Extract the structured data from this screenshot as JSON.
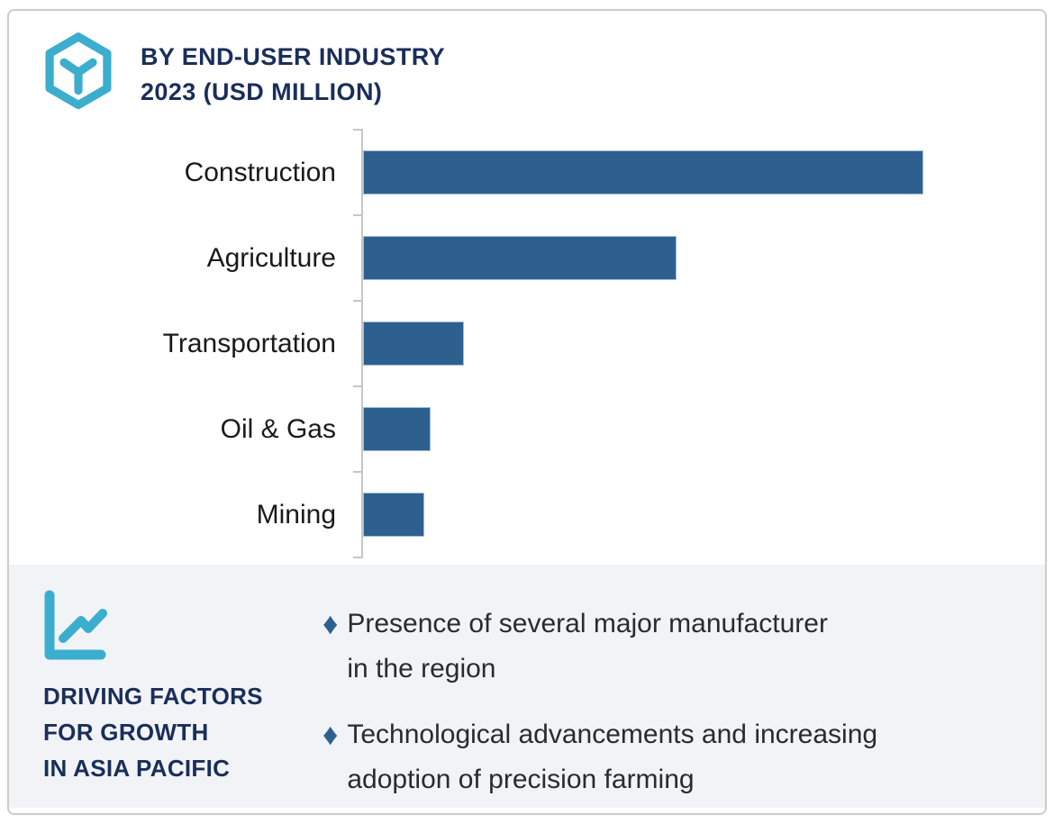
{
  "header": {
    "title_line1": "BY END-USER INDUSTRY",
    "title_line2": "2023 (USD MILLION)"
  },
  "chart_data": {
    "type": "bar",
    "orientation": "horizontal",
    "title": "BY END-USER INDUSTRY 2023 (USD MILLION)",
    "categories": [
      "Construction",
      "Agriculture",
      "Transportation",
      "Oil & Gas",
      "Mining"
    ],
    "values": [
      100,
      56,
      18,
      12,
      11
    ],
    "value_units": "relative bar length, % of longest bar (chart shows no numeric labels)",
    "xlabel": "",
    "ylabel": "",
    "xlim": [
      0,
      100
    ],
    "gridlines": false,
    "value_labels_shown": false,
    "legend": "none",
    "bar_color": "#2E608F",
    "axis_color": "#C4C6C9"
  },
  "factors": {
    "heading_lines": [
      "DRIVING FACTORS",
      "FOR GROWTH",
      "IN ASIA PACIFIC"
    ],
    "bullet_glyph": "♦",
    "bullets": [
      {
        "lines": [
          "Presence of several major manufacturer",
          "in the region"
        ]
      },
      {
        "lines": [
          "Technological advancements and increasing",
          "adoption of precision farming"
        ]
      }
    ]
  },
  "colors": {
    "accent_teal": "#3BAECE",
    "navy": "#1A2E5A",
    "bar_blue": "#2E608F",
    "panel_bg": "#F1F3F7",
    "border": "#CCCBCE"
  }
}
